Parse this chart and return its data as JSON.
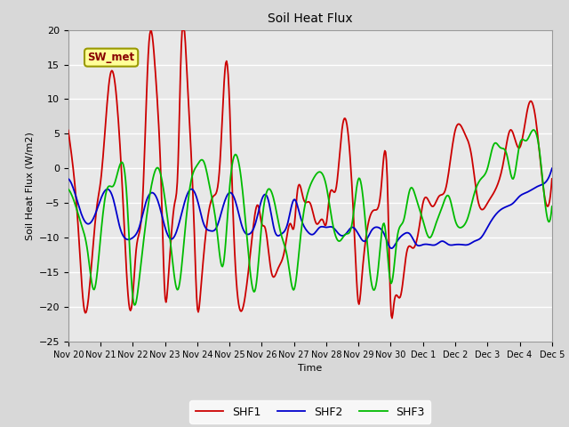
{
  "title": "Soil Heat Flux",
  "xlabel": "Time",
  "ylabel": "Soil Heat Flux (W/m2)",
  "ylim": [
    -25,
    20
  ],
  "xlim": [
    0,
    15
  ],
  "colors": {
    "SHF1": "#cc0000",
    "SHF2": "#0000cc",
    "SHF3": "#00bb00"
  },
  "bg_color": "#e8e8e8",
  "grid_color": "#ffffff",
  "annotation_text": "SW_met",
  "annotation_bg": "#ffff99",
  "annotation_border": "#999900",
  "x_tick_labels": [
    "Nov 20",
    "Nov 21",
    "Nov 22",
    "Nov 23",
    "Nov 24",
    "Nov 25",
    "Nov 26",
    "Nov 27",
    "Nov 28",
    "Nov 29",
    "Nov 30",
    "Dec 1",
    "Dec 2",
    "Dec 3",
    "Dec 4",
    "Dec 5"
  ],
  "legend_labels": [
    "SHF1",
    "SHF2",
    "SHF3"
  ],
  "shf1_x": [
    0.0,
    0.1,
    0.3,
    0.5,
    0.7,
    0.9,
    1.0,
    1.1,
    1.3,
    1.5,
    1.7,
    1.9,
    2.0,
    2.1,
    2.3,
    2.5,
    2.7,
    2.9,
    3.0,
    3.1,
    3.3,
    3.4,
    3.5,
    3.7,
    3.9,
    4.0,
    4.1,
    4.3,
    4.5,
    4.7,
    4.9,
    5.0,
    5.1,
    5.3,
    5.5,
    5.7,
    5.9,
    6.0,
    6.1,
    6.3,
    6.5,
    6.7,
    6.9,
    7.0,
    7.1,
    7.3,
    7.5,
    7.7,
    7.9,
    8.0,
    8.1,
    8.3,
    8.5,
    8.7,
    8.9,
    9.0,
    9.1,
    9.3,
    9.5,
    9.7,
    9.9,
    10.0,
    10.1,
    10.3,
    10.5,
    10.7,
    10.9,
    11.0,
    11.3,
    11.5,
    11.7,
    12.0,
    12.3,
    12.5,
    12.7,
    13.0,
    13.3,
    13.5,
    13.7,
    14.0,
    14.3,
    14.5,
    14.7,
    15.0
  ],
  "shf1_y": [
    5.5,
    2.0,
    -8.0,
    -20.5,
    -15.0,
    -5.0,
    -2.0,
    3.0,
    13.5,
    10.0,
    -5.0,
    -20.2,
    -18.5,
    -12.0,
    -5.0,
    18.0,
    14.0,
    -5.0,
    -18.5,
    -16.0,
    -5.0,
    0.0,
    17.0,
    12.0,
    -8.0,
    -20.0,
    -18.0,
    -8.0,
    -4.0,
    0.5,
    15.5,
    9.5,
    -5.0,
    -20.0,
    -18.0,
    -10.0,
    -5.5,
    -8.0,
    -8.5,
    -15.0,
    -14.5,
    -12.0,
    -8.0,
    -8.5,
    -3.5,
    -4.5,
    -5.0,
    -8.0,
    -7.5,
    -8.0,
    -4.0,
    -3.0,
    6.0,
    4.0,
    -12.0,
    -19.5,
    -16.0,
    -8.0,
    -6.0,
    -3.0,
    -2.5,
    -20.0,
    -19.5,
    -18.5,
    -12.0,
    -11.5,
    -8.0,
    -5.0,
    -5.5,
    -4.0,
    -3.0,
    5.5,
    5.0,
    2.0,
    -4.5,
    -5.0,
    -2.5,
    1.0,
    5.5,
    3.0,
    9.5,
    7.0,
    -1.5,
    -1.5
  ],
  "shf2_x": [
    0.0,
    0.2,
    0.4,
    0.6,
    0.8,
    1.0,
    1.2,
    1.4,
    1.6,
    1.8,
    2.0,
    2.2,
    2.4,
    2.6,
    2.8,
    3.0,
    3.2,
    3.4,
    3.6,
    3.8,
    4.0,
    4.2,
    4.4,
    4.6,
    4.8,
    5.0,
    5.2,
    5.4,
    5.6,
    5.8,
    6.0,
    6.2,
    6.4,
    6.6,
    6.8,
    7.0,
    7.2,
    7.4,
    7.6,
    7.8,
    8.0,
    8.2,
    8.4,
    8.6,
    8.8,
    9.0,
    9.2,
    9.4,
    9.6,
    9.8,
    10.0,
    10.2,
    10.4,
    10.6,
    10.8,
    11.0,
    11.2,
    11.4,
    11.6,
    11.8,
    12.0,
    12.2,
    12.4,
    12.6,
    12.8,
    13.0,
    13.2,
    13.4,
    13.6,
    13.8,
    14.0,
    14.2,
    14.4,
    14.6,
    14.8,
    15.0
  ],
  "shf2_y": [
    -1.5,
    -3.5,
    -6.5,
    -8.0,
    -7.0,
    -4.5,
    -3.0,
    -4.5,
    -8.5,
    -10.2,
    -10.0,
    -8.5,
    -5.0,
    -3.5,
    -5.0,
    -8.5,
    -10.2,
    -8.5,
    -5.0,
    -3.0,
    -4.5,
    -8.0,
    -9.0,
    -8.5,
    -5.5,
    -3.5,
    -5.0,
    -8.5,
    -9.5,
    -8.0,
    -4.5,
    -4.5,
    -9.0,
    -9.5,
    -8.0,
    -4.5,
    -7.0,
    -9.0,
    -9.5,
    -8.5,
    -8.5,
    -8.5,
    -9.5,
    -9.5,
    -8.5,
    -9.5,
    -10.5,
    -9.0,
    -8.5,
    -9.5,
    -11.5,
    -10.5,
    -9.5,
    -9.5,
    -11.0,
    -11.0,
    -11.0,
    -11.0,
    -10.5,
    -11.0,
    -11.0,
    -11.0,
    -11.0,
    -10.5,
    -10.0,
    -8.5,
    -7.0,
    -6.0,
    -5.5,
    -5.0,
    -4.0,
    -3.5,
    -3.0,
    -2.5,
    -2.0,
    0.0
  ],
  "shf3_x": [
    0.0,
    0.2,
    0.4,
    0.6,
    0.8,
    1.0,
    1.2,
    1.4,
    1.6,
    1.8,
    2.0,
    2.2,
    2.4,
    2.6,
    2.8,
    3.0,
    3.2,
    3.4,
    3.6,
    3.8,
    4.0,
    4.2,
    4.4,
    4.6,
    4.8,
    5.0,
    5.2,
    5.4,
    5.6,
    5.8,
    6.0,
    6.2,
    6.4,
    6.6,
    6.8,
    7.0,
    7.2,
    7.4,
    7.6,
    7.8,
    8.0,
    8.2,
    8.4,
    8.6,
    8.8,
    9.0,
    9.2,
    9.4,
    9.6,
    9.8,
    10.0,
    10.2,
    10.4,
    10.6,
    10.8,
    11.0,
    11.2,
    11.4,
    11.6,
    11.8,
    12.0,
    12.2,
    12.4,
    12.6,
    12.8,
    13.0,
    13.2,
    13.4,
    13.6,
    13.8,
    14.0,
    14.2,
    14.4,
    14.6,
    14.8,
    15.0
  ],
  "shf3_y": [
    -3.0,
    -5.0,
    -8.0,
    -12.0,
    -17.5,
    -10.0,
    -3.0,
    -2.5,
    0.5,
    -3.0,
    -18.5,
    -16.0,
    -8.0,
    -2.0,
    0.0,
    -4.5,
    -12.0,
    -17.5,
    -10.0,
    -2.0,
    0.5,
    1.0,
    -3.0,
    -8.5,
    -14.0,
    -3.0,
    2.0,
    -3.0,
    -13.0,
    -17.5,
    -8.0,
    -3.0,
    -5.0,
    -9.5,
    -13.0,
    -17.5,
    -10.0,
    -4.0,
    -1.5,
    -0.5,
    -2.5,
    -8.0,
    -10.5,
    -9.5,
    -8.0,
    -1.5,
    -7.0,
    -16.5,
    -15.0,
    -8.0,
    -16.5,
    -10.0,
    -7.5,
    -3.0,
    -4.5,
    -7.5,
    -10.0,
    -8.0,
    -5.5,
    -4.0,
    -7.5,
    -8.5,
    -7.0,
    -3.5,
    -1.5,
    0.0,
    3.5,
    3.0,
    2.0,
    -1.5,
    3.5,
    4.0,
    5.5,
    3.0,
    -5.5,
    -5.5
  ]
}
